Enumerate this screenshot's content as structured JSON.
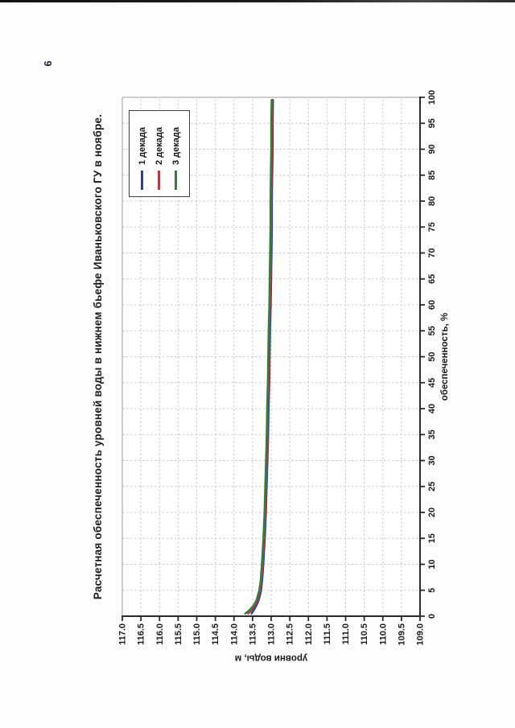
{
  "page": {
    "number": "6"
  },
  "chart_data": {
    "type": "line",
    "title": "Расчетная обеспеченность уровней воды в нижнем бьефе Иваньковского ГУ в ноябре.",
    "xlabel": "обеспеченность, %",
    "ylabel": "уровни воды, м",
    "xlim": [
      0,
      100
    ],
    "ylim": [
      109.0,
      117.0
    ],
    "x_tick_step": 5,
    "y_tick_step": 0.5,
    "x_ticks": [
      "0",
      "5",
      "10",
      "15",
      "20",
      "25",
      "30",
      "35",
      "40",
      "45",
      "50",
      "55",
      "60",
      "65",
      "70",
      "75",
      "80",
      "85",
      "90",
      "95",
      "100"
    ],
    "y_ticks": [
      "117.0",
      "116.5",
      "116.0",
      "115.5",
      "115.0",
      "114.5",
      "114.0",
      "113.5",
      "113.0",
      "112.5",
      "112.0",
      "111.5",
      "111.0",
      "110.5",
      "110.0",
      "109.5",
      "109.0"
    ],
    "grid": true,
    "grid_color": "#c9c9c9",
    "axis_color": "#2b2b2b",
    "border_color": "#9a9a9a",
    "legend_position": "top-right-inside",
    "orientation_on_page": "rotated 90 degrees counterclockwise",
    "x": [
      0.5,
      1,
      1.5,
      2,
      3,
      4,
      5,
      7,
      10,
      15,
      20,
      25,
      30,
      35,
      40,
      45,
      50,
      55,
      60,
      65,
      70,
      75,
      80,
      85,
      90,
      95,
      99.5
    ],
    "series": [
      {
        "name": "1 декада",
        "color": "#2a3f9b",
        "values": [
          113.53,
          113.48,
          113.44,
          113.4,
          113.34,
          113.3,
          113.27,
          113.24,
          113.21,
          113.17,
          113.14,
          113.12,
          113.1,
          113.08,
          113.07,
          113.05,
          113.04,
          113.03,
          113.01,
          113.0,
          112.99,
          112.98,
          112.98,
          112.97,
          112.96,
          112.96,
          112.95
        ]
      },
      {
        "name": "2 декада",
        "color": "#b23c3f",
        "values": [
          113.62,
          113.55,
          113.49,
          113.44,
          113.37,
          113.33,
          113.3,
          113.26,
          113.23,
          113.19,
          113.16,
          113.14,
          113.12,
          113.1,
          113.09,
          113.07,
          113.06,
          113.05,
          113.03,
          113.02,
          113.01,
          113.0,
          113.0,
          112.99,
          112.98,
          112.98,
          112.97
        ]
      },
      {
        "name": "3 декада",
        "color": "#317d3e",
        "values": [
          113.7,
          113.61,
          113.54,
          113.48,
          113.4,
          113.36,
          113.32,
          113.28,
          113.25,
          113.21,
          113.18,
          113.16,
          113.14,
          113.12,
          113.11,
          113.09,
          113.08,
          113.07,
          113.05,
          113.04,
          113.03,
          113.02,
          113.02,
          113.01,
          113.0,
          113.0,
          112.99
        ]
      }
    ]
  }
}
